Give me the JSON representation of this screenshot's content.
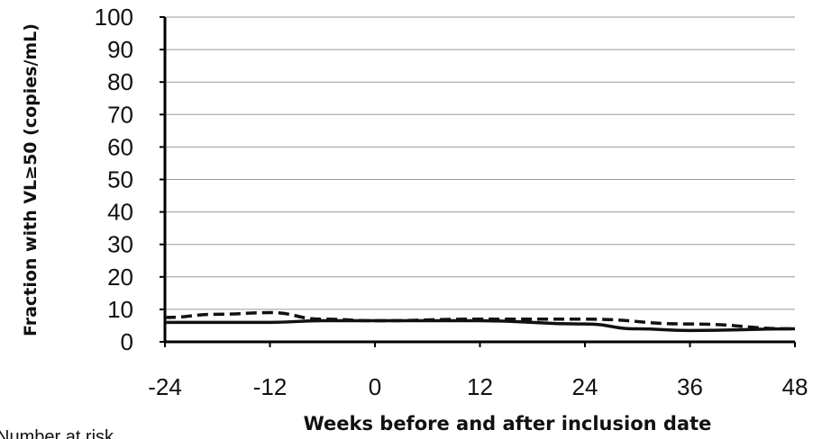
{
  "chart_data": {
    "type": "line",
    "title": "",
    "xlabel": "Weeks before and after inclusion date",
    "ylabel": "Fraction with VL≥50 (copies/mL)",
    "x_ticks": [
      "-24",
      "-12",
      "0",
      "12",
      "24",
      "36",
      "48"
    ],
    "y_ticks": [
      "0",
      "10",
      "20",
      "30",
      "40",
      "50",
      "60",
      "70",
      "80",
      "90",
      "100"
    ],
    "xlim": [
      -24,
      48
    ],
    "ylim": [
      0,
      100
    ],
    "grid": "horizontal",
    "series": [
      {
        "style": "solid",
        "color": "#111111",
        "x": [
          -24,
          -12,
          -6,
          0,
          12,
          24,
          30,
          36,
          48
        ],
        "y": [
          6,
          6,
          6.5,
          6.5,
          6.5,
          5.5,
          4,
          3.5,
          4
        ]
      },
      {
        "style": "dashed",
        "color": "#111111",
        "x": [
          -24,
          -18,
          -12,
          -6,
          0,
          12,
          24,
          36,
          48
        ],
        "y": [
          7.5,
          8.5,
          9,
          7,
          6.5,
          7,
          7,
          5.5,
          4
        ]
      }
    ]
  },
  "footer": {
    "risk_label": "Number at risk"
  }
}
